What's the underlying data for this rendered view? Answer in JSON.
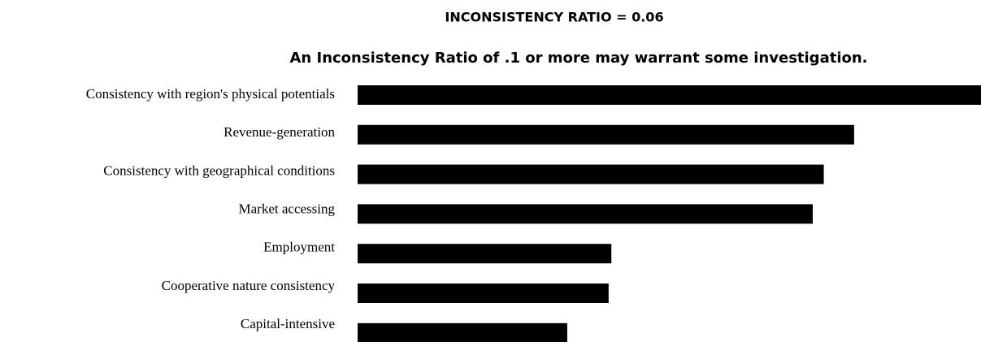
{
  "chart_data": {
    "type": "barh",
    "title": "INCONSISTENCY RATIO = 0.06",
    "subtitle": "An Inconsistency Ratio of .1 or more may warrant some investigation.",
    "categories": [
      "Consistency with region's physical potentials",
      "Revenue-generation",
      "Consistency with geographical conditions",
      "Market accessing",
      "Employment",
      "Cooperative nature consistency",
      "Capital-intensive"
    ],
    "values": [
      0.226,
      0.18,
      0.169,
      0.165,
      0.092,
      0.091,
      0.076
    ],
    "color": "#000000",
    "xlim": [
      0,
      0.226
    ]
  }
}
